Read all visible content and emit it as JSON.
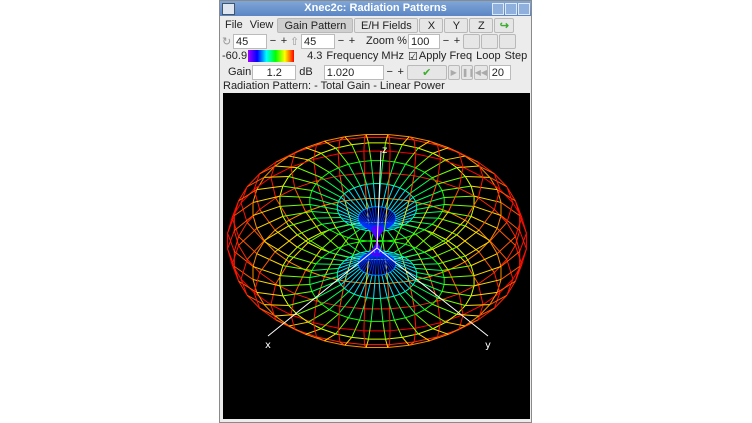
{
  "window": {
    "title": "Xnec2c: Radiation Patterns"
  },
  "menu": {
    "file": "File",
    "view": "View"
  },
  "tabs": {
    "gain_pattern": "Gain Pattern",
    "eh_fields": "E/H Fields",
    "x": "X",
    "y": "Y",
    "z": "Z"
  },
  "row2": {
    "rotate_value": "45",
    "tilt_value": "45",
    "zoom_label": "Zoom %",
    "zoom_value": "100",
    "minus": "−",
    "plus": "+"
  },
  "row3": {
    "scale_min": "-60.9",
    "scale_max": "4.3",
    "frequency_label": "Frequency MHz",
    "apply_freq_label": "Apply Freq",
    "loop_label": "Loop",
    "step_label": "Step",
    "apply_checked": true
  },
  "row4": {
    "gain_label": "Gain",
    "gain_value": "1.2",
    "db_label": "dB",
    "frequency_value": "1.020",
    "step_value": "20"
  },
  "pattern": {
    "label": "Radiation Pattern: - Total Gain - Linear Power",
    "axes": {
      "x": "x",
      "y": "y",
      "z": "z"
    },
    "azimuth_deg": 45,
    "elevation_deg": 45
  },
  "colors": {
    "accent": "#5b86c4",
    "canvas": "#000000",
    "apply_icon": "#3cae2e"
  }
}
